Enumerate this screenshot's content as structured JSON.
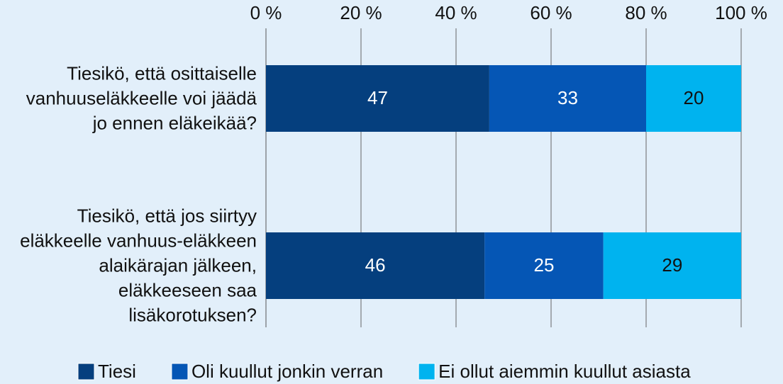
{
  "chart_data": {
    "type": "stacked_barh",
    "categories": [
      "Tiesikö, että osittaiselle vanhuuseläkkeelle voi jäädä jo ennen eläkeikää?",
      "Tiesikö, että jos siirtyy eläkkeelle vanhuus-eläkkeen alaikärajan jälkeen, eläkkeeseen saa lisäkorotuksen?"
    ],
    "series": [
      {
        "name": "Tiesi",
        "color": "#053f7e",
        "values": [
          47,
          46
        ]
      },
      {
        "name": "Oli kuullut jonkin verran",
        "color": "#0556b5",
        "values": [
          33,
          25
        ]
      },
      {
        "name": "Ei ollut aiemmin kuullut asiasta",
        "color": "#00b3ef",
        "values": [
          20,
          29
        ]
      }
    ],
    "xlim": [
      0,
      100
    ],
    "xticks": [
      {
        "value": 0,
        "label": "0 %"
      },
      {
        "value": 20,
        "label": "20 %"
      },
      {
        "value": 40,
        "label": "40 %"
      },
      {
        "value": 60,
        "label": "60 %"
      },
      {
        "value": 80,
        "label": "80 %"
      },
      {
        "value": 100,
        "label": "100 %"
      }
    ],
    "grid": true,
    "legend": "bottom"
  }
}
